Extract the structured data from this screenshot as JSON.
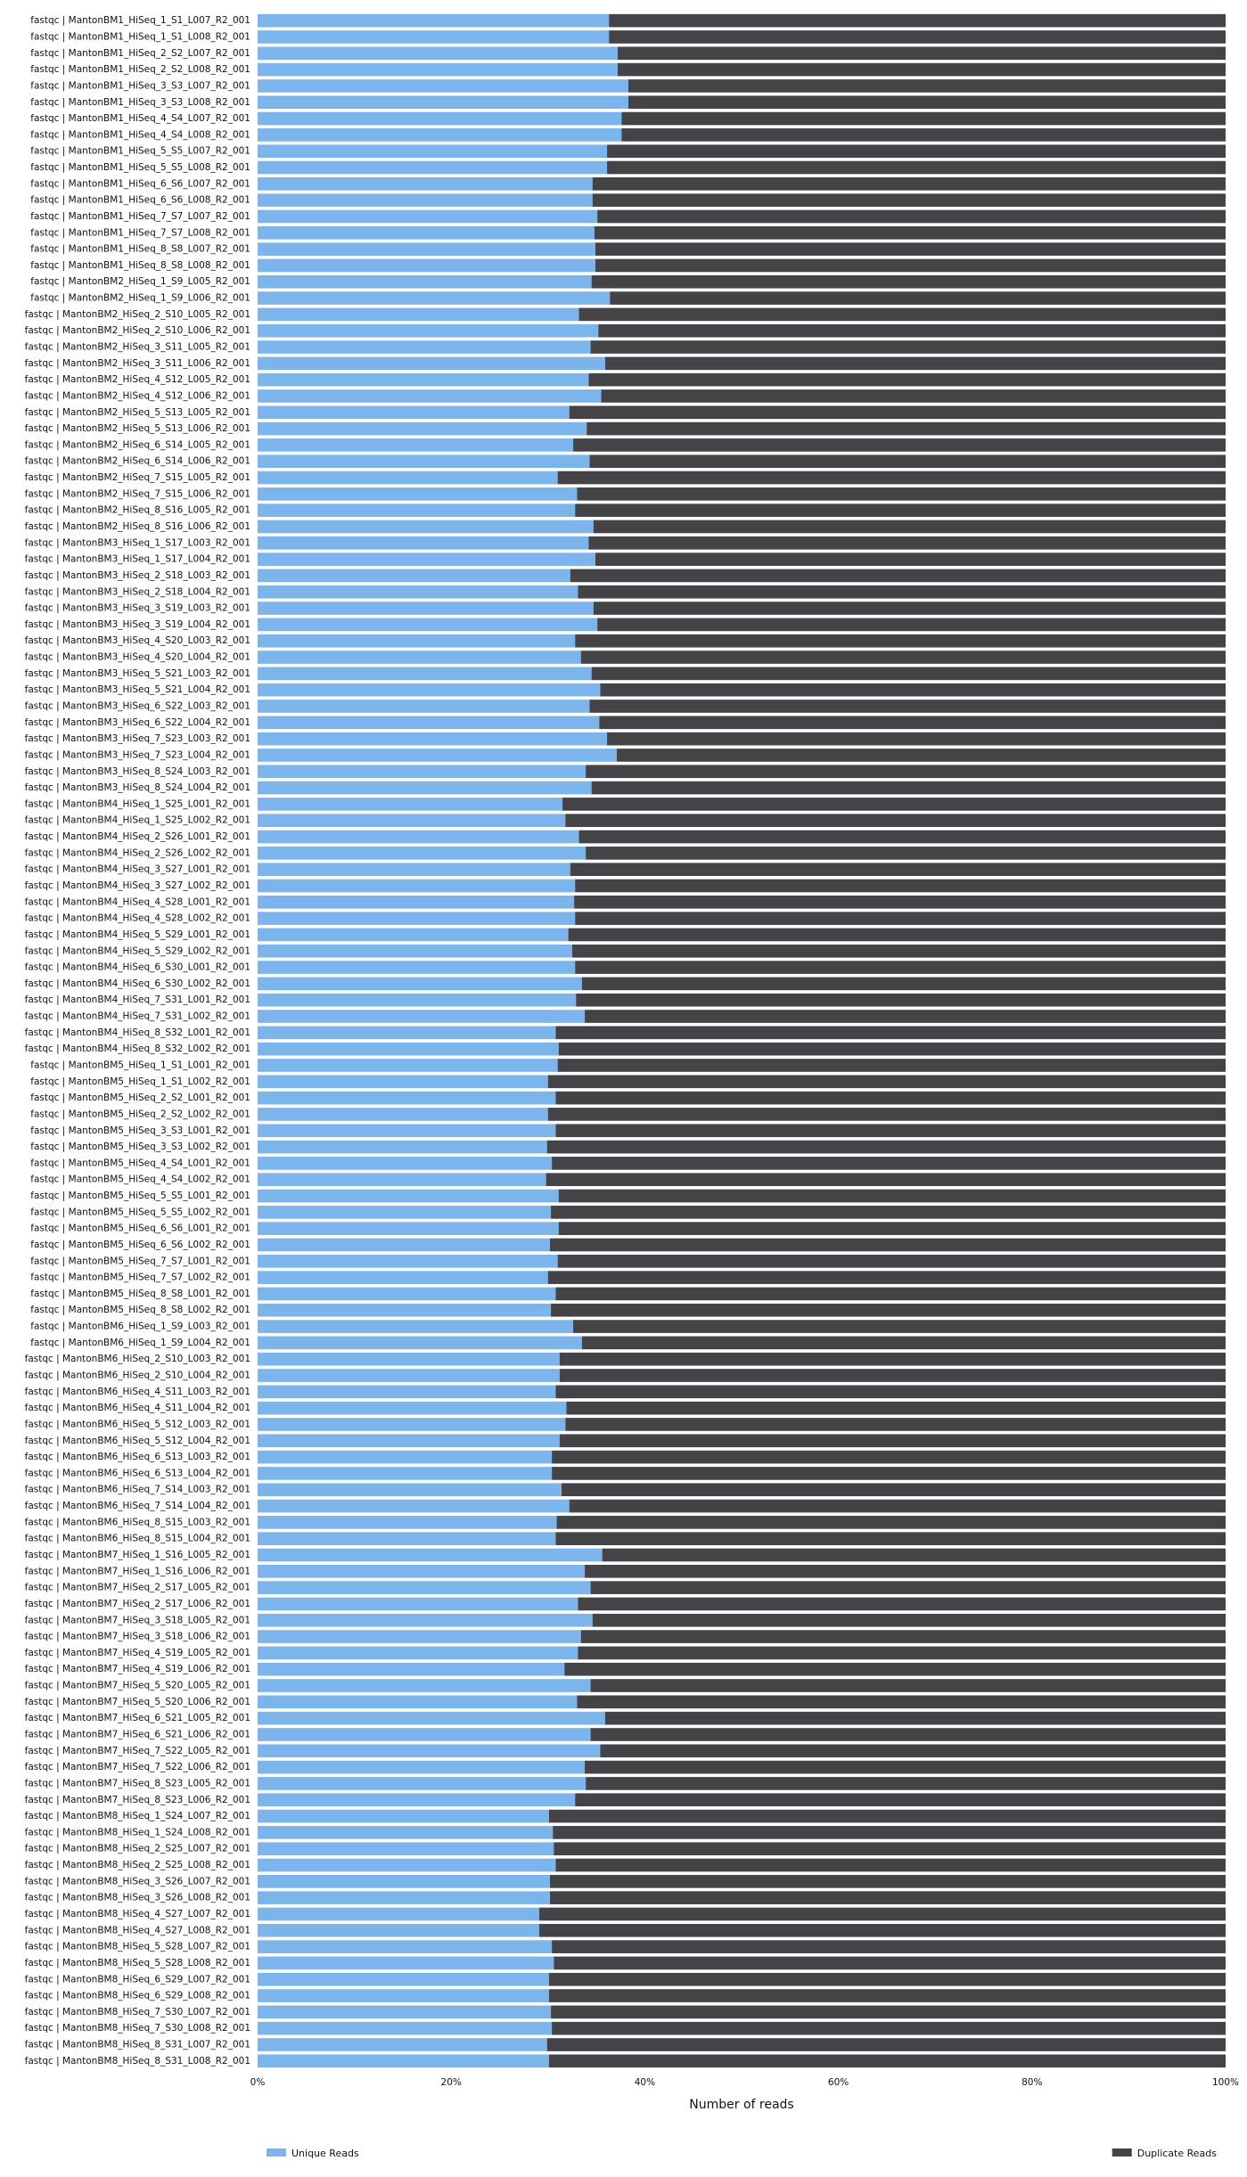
{
  "chart_data": {
    "type": "bar",
    "orientation": "horizontal",
    "stacked": true,
    "percent_stacked": true,
    "xlabel": "Number of reads",
    "xlim": [
      0,
      100
    ],
    "x_ticks": [
      "0%",
      "20%",
      "40%",
      "60%",
      "80%",
      "100%"
    ],
    "x_tick_values": [
      0,
      20,
      40,
      60,
      80,
      100
    ],
    "grid": false,
    "legend_position": "bottom",
    "categories": [
      "fastqc | MantonBM1_HiSeq_1_S1_L007_R2_001",
      "fastqc | MantonBM1_HiSeq_1_S1_L008_R2_001",
      "fastqc | MantonBM1_HiSeq_2_S2_L007_R2_001",
      "fastqc | MantonBM1_HiSeq_2_S2_L008_R2_001",
      "fastqc | MantonBM1_HiSeq_3_S3_L007_R2_001",
      "fastqc | MantonBM1_HiSeq_3_S3_L008_R2_001",
      "fastqc | MantonBM1_HiSeq_4_S4_L007_R2_001",
      "fastqc | MantonBM1_HiSeq_4_S4_L008_R2_001",
      "fastqc | MantonBM1_HiSeq_5_S5_L007_R2_001",
      "fastqc | MantonBM1_HiSeq_5_S5_L008_R2_001",
      "fastqc | MantonBM1_HiSeq_6_S6_L007_R2_001",
      "fastqc | MantonBM1_HiSeq_6_S6_L008_R2_001",
      "fastqc | MantonBM1_HiSeq_7_S7_L007_R2_001",
      "fastqc | MantonBM1_HiSeq_7_S7_L008_R2_001",
      "fastqc | MantonBM1_HiSeq_8_S8_L007_R2_001",
      "fastqc | MantonBM1_HiSeq_8_S8_L008_R2_001",
      "fastqc | MantonBM2_HiSeq_1_S9_L005_R2_001",
      "fastqc | MantonBM2_HiSeq_1_S9_L006_R2_001",
      "fastqc | MantonBM2_HiSeq_2_S10_L005_R2_001",
      "fastqc | MantonBM2_HiSeq_2_S10_L006_R2_001",
      "fastqc | MantonBM2_HiSeq_3_S11_L005_R2_001",
      "fastqc | MantonBM2_HiSeq_3_S11_L006_R2_001",
      "fastqc | MantonBM2_HiSeq_4_S12_L005_R2_001",
      "fastqc | MantonBM2_HiSeq_4_S12_L006_R2_001",
      "fastqc | MantonBM2_HiSeq_5_S13_L005_R2_001",
      "fastqc | MantonBM2_HiSeq_5_S13_L006_R2_001",
      "fastqc | MantonBM2_HiSeq_6_S14_L005_R2_001",
      "fastqc | MantonBM2_HiSeq_6_S14_L006_R2_001",
      "fastqc | MantonBM2_HiSeq_7_S15_L005_R2_001",
      "fastqc | MantonBM2_HiSeq_7_S15_L006_R2_001",
      "fastqc | MantonBM2_HiSeq_8_S16_L005_R2_001",
      "fastqc | MantonBM2_HiSeq_8_S16_L006_R2_001",
      "fastqc | MantonBM3_HiSeq_1_S17_L003_R2_001",
      "fastqc | MantonBM3_HiSeq_1_S17_L004_R2_001",
      "fastqc | MantonBM3_HiSeq_2_S18_L003_R2_001",
      "fastqc | MantonBM3_HiSeq_2_S18_L004_R2_001",
      "fastqc | MantonBM3_HiSeq_3_S19_L003_R2_001",
      "fastqc | MantonBM3_HiSeq_3_S19_L004_R2_001",
      "fastqc | MantonBM3_HiSeq_4_S20_L003_R2_001",
      "fastqc | MantonBM3_HiSeq_4_S20_L004_R2_001",
      "fastqc | MantonBM3_HiSeq_5_S21_L003_R2_001",
      "fastqc | MantonBM3_HiSeq_5_S21_L004_R2_001",
      "fastqc | MantonBM3_HiSeq_6_S22_L003_R2_001",
      "fastqc | MantonBM3_HiSeq_6_S22_L004_R2_001",
      "fastqc | MantonBM3_HiSeq_7_S23_L003_R2_001",
      "fastqc | MantonBM3_HiSeq_7_S23_L004_R2_001",
      "fastqc | MantonBM3_HiSeq_8_S24_L003_R2_001",
      "fastqc | MantonBM3_HiSeq_8_S24_L004_R2_001",
      "fastqc | MantonBM4_HiSeq_1_S25_L001_R2_001",
      "fastqc | MantonBM4_HiSeq_1_S25_L002_R2_001",
      "fastqc | MantonBM4_HiSeq_2_S26_L001_R2_001",
      "fastqc | MantonBM4_HiSeq_2_S26_L002_R2_001",
      "fastqc | MantonBM4_HiSeq_3_S27_L001_R2_001",
      "fastqc | MantonBM4_HiSeq_3_S27_L002_R2_001",
      "fastqc | MantonBM4_HiSeq_4_S28_L001_R2_001",
      "fastqc | MantonBM4_HiSeq_4_S28_L002_R2_001",
      "fastqc | MantonBM4_HiSeq_5_S29_L001_R2_001",
      "fastqc | MantonBM4_HiSeq_5_S29_L002_R2_001",
      "fastqc | MantonBM4_HiSeq_6_S30_L001_R2_001",
      "fastqc | MantonBM4_HiSeq_6_S30_L002_R2_001",
      "fastqc | MantonBM4_HiSeq_7_S31_L001_R2_001",
      "fastqc | MantonBM4_HiSeq_7_S31_L002_R2_001",
      "fastqc | MantonBM4_HiSeq_8_S32_L001_R2_001",
      "fastqc | MantonBM4_HiSeq_8_S32_L002_R2_001",
      "fastqc | MantonBM5_HiSeq_1_S1_L001_R2_001",
      "fastqc | MantonBM5_HiSeq_1_S1_L002_R2_001",
      "fastqc | MantonBM5_HiSeq_2_S2_L001_R2_001",
      "fastqc | MantonBM5_HiSeq_2_S2_L002_R2_001",
      "fastqc | MantonBM5_HiSeq_3_S3_L001_R2_001",
      "fastqc | MantonBM5_HiSeq_3_S3_L002_R2_001",
      "fastqc | MantonBM5_HiSeq_4_S4_L001_R2_001",
      "fastqc | MantonBM5_HiSeq_4_S4_L002_R2_001",
      "fastqc | MantonBM5_HiSeq_5_S5_L001_R2_001",
      "fastqc | MantonBM5_HiSeq_5_S5_L002_R2_001",
      "fastqc | MantonBM5_HiSeq_6_S6_L001_R2_001",
      "fastqc | MantonBM5_HiSeq_6_S6_L002_R2_001",
      "fastqc | MantonBM5_HiSeq_7_S7_L001_R2_001",
      "fastqc | MantonBM5_HiSeq_7_S7_L002_R2_001",
      "fastqc | MantonBM5_HiSeq_8_S8_L001_R2_001",
      "fastqc | MantonBM5_HiSeq_8_S8_L002_R2_001",
      "fastqc | MantonBM6_HiSeq_1_S9_L003_R2_001",
      "fastqc | MantonBM6_HiSeq_1_S9_L004_R2_001",
      "fastqc | MantonBM6_HiSeq_2_S10_L003_R2_001",
      "fastqc | MantonBM6_HiSeq_2_S10_L004_R2_001",
      "fastqc | MantonBM6_HiSeq_4_S11_L003_R2_001",
      "fastqc | MantonBM6_HiSeq_4_S11_L004_R2_001",
      "fastqc | MantonBM6_HiSeq_5_S12_L003_R2_001",
      "fastqc | MantonBM6_HiSeq_5_S12_L004_R2_001",
      "fastqc | MantonBM6_HiSeq_6_S13_L003_R2_001",
      "fastqc | MantonBM6_HiSeq_6_S13_L004_R2_001",
      "fastqc | MantonBM6_HiSeq_7_S14_L003_R2_001",
      "fastqc | MantonBM6_HiSeq_7_S14_L004_R2_001",
      "fastqc | MantonBM6_HiSeq_8_S15_L003_R2_001",
      "fastqc | MantonBM6_HiSeq_8_S15_L004_R2_001",
      "fastqc | MantonBM7_HiSeq_1_S16_L005_R2_001",
      "fastqc | MantonBM7_HiSeq_1_S16_L006_R2_001",
      "fastqc | MantonBM7_HiSeq_2_S17_L005_R2_001",
      "fastqc | MantonBM7_HiSeq_2_S17_L006_R2_001",
      "fastqc | MantonBM7_HiSeq_3_S18_L005_R2_001",
      "fastqc | MantonBM7_HiSeq_3_S18_L006_R2_001",
      "fastqc | MantonBM7_HiSeq_4_S19_L005_R2_001",
      "fastqc | MantonBM7_HiSeq_4_S19_L006_R2_001",
      "fastqc | MantonBM7_HiSeq_5_S20_L005_R2_001",
      "fastqc | MantonBM7_HiSeq_5_S20_L006_R2_001",
      "fastqc | MantonBM7_HiSeq_6_S21_L005_R2_001",
      "fastqc | MantonBM7_HiSeq_6_S21_L006_R2_001",
      "fastqc | MantonBM7_HiSeq_7_S22_L005_R2_001",
      "fastqc | MantonBM7_HiSeq_7_S22_L006_R2_001",
      "fastqc | MantonBM7_HiSeq_8_S23_L005_R2_001",
      "fastqc | MantonBM7_HiSeq_8_S23_L006_R2_001",
      "fastqc | MantonBM8_HiSeq_1_S24_L007_R2_001",
      "fastqc | MantonBM8_HiSeq_1_S24_L008_R2_001",
      "fastqc | MantonBM8_HiSeq_2_S25_L007_R2_001",
      "fastqc | MantonBM8_HiSeq_2_S25_L008_R2_001",
      "fastqc | MantonBM8_HiSeq_3_S26_L007_R2_001",
      "fastqc | MantonBM8_HiSeq_3_S26_L008_R2_001",
      "fastqc | MantonBM8_HiSeq_4_S27_L007_R2_001",
      "fastqc | MantonBM8_HiSeq_4_S27_L008_R2_001",
      "fastqc | MantonBM8_HiSeq_5_S28_L007_R2_001",
      "fastqc | MantonBM8_HiSeq_5_S28_L008_R2_001",
      "fastqc | MantonBM8_HiSeq_6_S29_L007_R2_001",
      "fastqc | MantonBM8_HiSeq_6_S29_L008_R2_001",
      "fastqc | MantonBM8_HiSeq_7_S30_L007_R2_001",
      "fastqc | MantonBM8_HiSeq_7_S30_L008_R2_001",
      "fastqc | MantonBM8_HiSeq_8_S31_L007_R2_001",
      "fastqc | MantonBM8_HiSeq_8_S31_L008_R2_001"
    ],
    "series": [
      {
        "name": "Unique Reads",
        "color": "#7cb5ec",
        "values": [
          36.3,
          36.3,
          37.2,
          37.2,
          38.3,
          38.3,
          37.6,
          37.6,
          36.1,
          36.1,
          34.6,
          34.6,
          35.1,
          34.8,
          34.9,
          34.9,
          34.5,
          36.4,
          33.2,
          35.2,
          34.4,
          35.9,
          34.2,
          35.5,
          32.2,
          34.0,
          32.6,
          34.3,
          31.0,
          33.0,
          32.8,
          34.7,
          34.2,
          34.9,
          32.3,
          33.1,
          34.7,
          35.1,
          32.8,
          33.4,
          34.5,
          35.4,
          34.3,
          35.3,
          36.1,
          37.1,
          33.9,
          34.5,
          31.5,
          31.8,
          33.2,
          33.9,
          32.3,
          32.8,
          32.7,
          32.8,
          32.1,
          32.5,
          32.8,
          33.5,
          32.9,
          33.8,
          30.8,
          31.1,
          31.0,
          30.0,
          30.8,
          30.0,
          30.8,
          29.9,
          30.4,
          29.8,
          31.1,
          30.3,
          31.1,
          30.2,
          31.0,
          30.0,
          30.8,
          30.3,
          32.6,
          33.5,
          31.2,
          31.2,
          30.8,
          31.9,
          31.8,
          31.2,
          30.4,
          30.4,
          31.4,
          32.2,
          30.9,
          30.8,
          35.6,
          33.8,
          34.4,
          33.1,
          34.6,
          33.4,
          33.1,
          31.7,
          34.4,
          33.0,
          35.9,
          34.4,
          35.4,
          33.8,
          33.9,
          32.8,
          30.1,
          30.5,
          30.6,
          30.8,
          30.2,
          30.2,
          29.1,
          29.1,
          30.4,
          30.6,
          30.1,
          30.1,
          30.3,
          30.4,
          29.9,
          30.1
        ]
      },
      {
        "name": "Duplicate Reads",
        "color": "#434348",
        "values": [
          63.7,
          63.7,
          62.8,
          62.8,
          61.7,
          61.7,
          62.4,
          62.4,
          63.9,
          63.9,
          65.4,
          65.4,
          64.9,
          65.2,
          65.1,
          65.1,
          65.5,
          63.6,
          66.8,
          64.8,
          65.6,
          64.1,
          65.8,
          64.5,
          67.8,
          66.0,
          67.4,
          65.7,
          69.0,
          67.0,
          67.2,
          65.3,
          65.8,
          65.1,
          67.7,
          66.9,
          65.3,
          64.9,
          67.2,
          66.6,
          65.5,
          64.6,
          65.7,
          64.7,
          63.9,
          62.9,
          66.1,
          65.5,
          68.5,
          68.2,
          66.8,
          66.1,
          67.7,
          67.2,
          67.3,
          67.2,
          67.9,
          67.5,
          67.2,
          66.5,
          67.1,
          66.2,
          69.2,
          68.9,
          69.0,
          70.0,
          69.2,
          70.0,
          69.2,
          70.1,
          69.6,
          70.2,
          68.9,
          69.7,
          68.9,
          69.8,
          69.0,
          70.0,
          69.2,
          69.7,
          67.4,
          66.5,
          68.8,
          68.8,
          69.2,
          68.1,
          68.2,
          68.8,
          69.6,
          69.6,
          68.6,
          67.8,
          69.1,
          69.2,
          64.4,
          66.2,
          65.6,
          66.9,
          65.4,
          66.6,
          66.9,
          68.3,
          65.6,
          67.0,
          64.1,
          65.6,
          64.6,
          66.2,
          66.1,
          67.2,
          69.9,
          69.5,
          69.4,
          69.2,
          69.8,
          69.8,
          70.9,
          70.9,
          69.6,
          69.4,
          69.9,
          69.9,
          69.7,
          69.6,
          70.1,
          69.9
        ]
      }
    ]
  }
}
